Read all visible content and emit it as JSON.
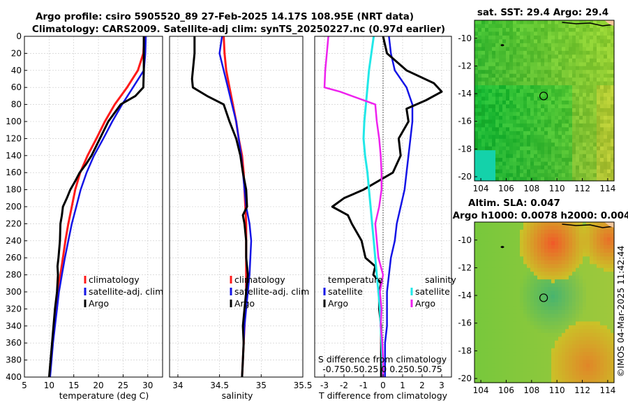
{
  "title": {
    "line1": "Argo profile: csiro 5905520_89 27-Feb-2025 14.17S 108.95E (NRT data)",
    "line2": "Climatology: CARS2009. Satellite-adj clim: synTS_20250227.nc (0.97d earlier)"
  },
  "colors": {
    "climatology": "#ff1a1a",
    "satellite": "#1414e6",
    "argo": "#000000",
    "s_satellite": "#22e8e8",
    "s_argo": "#ee22ee"
  },
  "chart_data": [
    {
      "type": "line",
      "id": "temperature",
      "xlabel": "temperature (deg C)",
      "xlim": [
        5,
        33
      ],
      "xticks": [
        "5",
        "10",
        "15",
        "20",
        "25",
        "30"
      ],
      "xtick_values": [
        5,
        10,
        15,
        20,
        25,
        30
      ],
      "ylim": [
        0,
        400
      ],
      "yticks": [
        "0",
        "20",
        "40",
        "60",
        "80",
        "100",
        "120",
        "140",
        "160",
        "180",
        "200",
        "220",
        "240",
        "260",
        "280",
        "300",
        "320",
        "340",
        "360",
        "380",
        "400"
      ],
      "legend": [
        "climatology",
        "satellite-adj. clim",
        "Argo"
      ],
      "series": [
        {
          "name": "climatology",
          "depth": [
            0,
            20,
            40,
            60,
            80,
            100,
            120,
            140,
            160,
            180,
            200,
            220,
            240,
            260,
            280,
            300,
            320,
            340,
            360,
            380,
            400
          ],
          "values": [
            29.3,
            29.1,
            28.0,
            25.8,
            23.3,
            21.3,
            19.6,
            17.8,
            16.3,
            15.3,
            14.6,
            13.9,
            13.3,
            12.8,
            12.3,
            11.8,
            11.4,
            11.0,
            10.7,
            10.4,
            10.1
          ]
        },
        {
          "name": "satellite-adj. clim",
          "depth": [
            0,
            20,
            40,
            60,
            80,
            100,
            120,
            140,
            160,
            180,
            200,
            220,
            240,
            260,
            280,
            300,
            320,
            340,
            360,
            380,
            400
          ],
          "values": [
            29.6,
            29.5,
            29.2,
            27.0,
            24.8,
            22.8,
            21.0,
            19.1,
            17.6,
            16.4,
            15.5,
            14.6,
            13.9,
            13.2,
            12.6,
            12.0,
            11.6,
            11.2,
            10.8,
            10.5,
            10.2
          ]
        },
        {
          "name": "Argo",
          "depth": [
            0,
            20,
            40,
            60,
            70,
            80,
            100,
            120,
            140,
            150,
            160,
            170,
            180,
            190,
            200,
            210,
            220,
            240,
            260,
            270,
            280,
            300,
            320,
            340,
            360,
            380,
            400
          ],
          "values": [
            29.2,
            29.2,
            29.2,
            29.1,
            27.5,
            24.5,
            22.0,
            20.3,
            18.6,
            17.5,
            16.2,
            15.3,
            14.3,
            13.6,
            12.8,
            12.6,
            12.3,
            12.2,
            11.9,
            11.7,
            11.8,
            11.6,
            11.2,
            10.9,
            10.6,
            10.3,
            10.0
          ]
        }
      ]
    },
    {
      "type": "line",
      "id": "salinity",
      "xlabel": "salinity",
      "xlim": [
        33.9,
        35.5
      ],
      "xticks": [
        "34",
        "34.5",
        "35",
        "35.5"
      ],
      "xtick_values": [
        34,
        34.5,
        35,
        35.5
      ],
      "ylim": [
        0,
        400
      ],
      "legend": [
        "climatology",
        "satellite-adj. clim",
        "Argo"
      ],
      "series": [
        {
          "name": "climatology",
          "depth": [
            0,
            20,
            40,
            60,
            80,
            100,
            120,
            140,
            160,
            180,
            200,
            220,
            240,
            260,
            280,
            300,
            320,
            340,
            360,
            380,
            400
          ],
          "values": [
            34.55,
            34.56,
            34.58,
            34.62,
            34.66,
            34.7,
            34.73,
            34.77,
            34.79,
            34.8,
            34.81,
            34.82,
            34.82,
            34.82,
            34.82,
            34.82,
            34.81,
            34.8,
            34.79,
            34.78,
            34.77
          ]
        },
        {
          "name": "satellite-adj. clim",
          "depth": [
            0,
            20,
            40,
            60,
            80,
            100,
            120,
            140,
            160,
            180,
            200,
            220,
            240,
            260,
            280,
            300,
            320,
            340,
            360,
            380,
            400
          ],
          "values": [
            34.53,
            34.5,
            34.55,
            34.6,
            34.65,
            34.7,
            34.73,
            34.76,
            34.78,
            34.8,
            34.82,
            34.86,
            34.88,
            34.87,
            34.86,
            34.84,
            34.82,
            34.8,
            34.79,
            34.78,
            34.77
          ]
        },
        {
          "name": "Argo",
          "depth": [
            0,
            20,
            40,
            50,
            60,
            70,
            80,
            100,
            120,
            140,
            160,
            180,
            200,
            210,
            220,
            240,
            260,
            280,
            300,
            320,
            340,
            360,
            380,
            400
          ],
          "values": [
            34.2,
            34.2,
            34.18,
            34.17,
            34.18,
            34.35,
            34.55,
            34.62,
            34.7,
            34.75,
            34.78,
            34.82,
            34.83,
            34.78,
            34.8,
            34.82,
            34.82,
            34.84,
            34.82,
            34.8,
            34.78,
            34.79,
            34.78,
            34.77
          ]
        }
      ]
    },
    {
      "type": "line",
      "id": "differences",
      "xlabel": "T difference from climatology",
      "xlim": [
        -3.5,
        3.5
      ],
      "xticks": [
        "-3",
        "-2",
        "-1",
        "0",
        "1",
        "2",
        "3"
      ],
      "xtick_values": [
        -3,
        -2,
        -1,
        0,
        1,
        2,
        3
      ],
      "ylim": [
        0,
        400
      ],
      "legend_t_title": "temperature",
      "legend_s_title": "salinity",
      "legend_t": [
        "satellite",
        "Argo"
      ],
      "legend_s": [
        "satellite",
        "Argo"
      ],
      "s_note_line1": "S difference from climatology",
      "s_note_line2": "-0.750.50.25  0  0.250.50.75",
      "series": [
        {
          "name": "T satellite",
          "depth": [
            0,
            20,
            40,
            60,
            80,
            100,
            120,
            140,
            160,
            180,
            200,
            220,
            240,
            260,
            280,
            300,
            320,
            340,
            360,
            380,
            400
          ],
          "values": [
            0.3,
            0.4,
            0.6,
            1.2,
            1.5,
            1.5,
            1.4,
            1.3,
            1.2,
            1.1,
            0.9,
            0.7,
            0.6,
            0.4,
            0.3,
            0.2,
            0.2,
            0.2,
            0.1,
            0.1,
            0.1
          ]
        },
        {
          "name": "T Argo",
          "depth": [
            0,
            20,
            40,
            55,
            65,
            75,
            85,
            100,
            120,
            140,
            160,
            180,
            190,
            200,
            210,
            220,
            240,
            260,
            270,
            280,
            290,
            300,
            320,
            340,
            360,
            380,
            400
          ],
          "values": [
            0.0,
            0.2,
            1.2,
            2.6,
            3.0,
            2.2,
            1.2,
            1.3,
            0.8,
            0.9,
            0.5,
            -1.0,
            -2.0,
            -2.6,
            -1.8,
            -1.6,
            -1.1,
            -0.9,
            -0.4,
            -0.5,
            -0.1,
            -0.2,
            -0.2,
            -0.1,
            -0.1,
            -0.1,
            -0.1
          ]
        },
        {
          "name": "S satellite",
          "depth": [
            0,
            20,
            40,
            60,
            80,
            100,
            120,
            140,
            160,
            180,
            200,
            220,
            240,
            260,
            280,
            300,
            320,
            340,
            360,
            380,
            400
          ],
          "values": [
            -0.12,
            -0.15,
            -0.18,
            -0.2,
            -0.22,
            -0.24,
            -0.25,
            -0.23,
            -0.2,
            -0.18,
            -0.16,
            -0.14,
            -0.12,
            -0.1,
            -0.08,
            -0.06,
            -0.04,
            -0.03,
            -0.02,
            -0.01,
            0.0
          ]
        },
        {
          "name": "S Argo",
          "depth": [
            0,
            20,
            40,
            60,
            65,
            80,
            100,
            120,
            140,
            160,
            180,
            200,
            220,
            240,
            260,
            280,
            300,
            320,
            340,
            360,
            380,
            400
          ],
          "values": [
            -0.7,
            -0.72,
            -0.74,
            -0.75,
            -0.55,
            -0.1,
            -0.08,
            -0.05,
            -0.03,
            -0.02,
            -0.02,
            -0.05,
            -0.1,
            -0.08,
            -0.06,
            0.0,
            -0.04,
            -0.02,
            -0.03,
            -0.01,
            0.0,
            0.0
          ]
        }
      ]
    },
    {
      "type": "heatmap",
      "id": "sst_map",
      "title": "sat. SST: 29.4 Argo: 29.4",
      "xticks": [
        "104",
        "106",
        "108",
        "110",
        "112",
        "114"
      ],
      "xtick_values": [
        104,
        106,
        108,
        110,
        112,
        114
      ],
      "yticks": [
        "-10",
        "-12",
        "-14",
        "-16",
        "-18",
        "-20"
      ],
      "ytick_values": [
        -10,
        -12,
        -14,
        -16,
        -18,
        -20
      ],
      "xlim": [
        103.5,
        114.5
      ],
      "ylim": [
        -20.3,
        -8.7
      ],
      "marker": [
        108.95,
        -14.17
      ]
    },
    {
      "type": "heatmap",
      "id": "sla_map",
      "title_line1": "Altim. SLA: 0.047",
      "title_line2": "Argo h1000: 0.0078 h2000: 0.004",
      "xticks": [
        "104",
        "106",
        "108",
        "110",
        "112",
        "114"
      ],
      "xtick_values": [
        104,
        106,
        108,
        110,
        112,
        114
      ],
      "yticks": [
        "-10",
        "-12",
        "-14",
        "-16",
        "-18",
        "-20"
      ],
      "ytick_values": [
        -10,
        -12,
        -14,
        -16,
        -18,
        -20
      ],
      "xlim": [
        103.5,
        114.5
      ],
      "ylim": [
        -20.3,
        -8.7
      ],
      "marker": [
        108.95,
        -14.17
      ]
    }
  ],
  "footer": "©IMOS 04-Mar-2025 11:42:44"
}
